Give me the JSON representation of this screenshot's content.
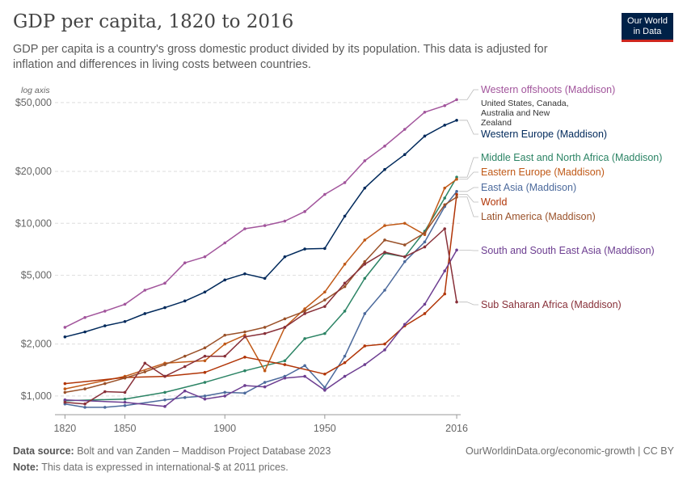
{
  "header": {
    "title": "GDP per capita, 1820 to 2016",
    "subtitle": "GDP per capita is a country's gross domestic product divided by its population. This data is adjusted for inflation and differences in living costs between countries."
  },
  "logo": {
    "line1": "Our World",
    "line2": "in Data",
    "bg": "#002147",
    "accent": "#ce261e"
  },
  "footer": {
    "source_label": "Data source:",
    "source_text": "Bolt and van Zanden – Maddison Project Database 2023",
    "note_label": "Note:",
    "note_text": "This data is expressed in international-$ at 2011 prices.",
    "link": "OurWorldinData.org/economic-growth | CC BY"
  },
  "chart_data": {
    "type": "line",
    "scale": "log",
    "axis_note": "log axis",
    "xlim": [
      1815,
      2018
    ],
    "ylim": [
      850,
      60000
    ],
    "x_ticks": [
      1820,
      1850,
      1900,
      1950,
      2016
    ],
    "y_ticks": [
      {
        "value": 1000,
        "label": "$1,000"
      },
      {
        "value": 2000,
        "label": "$2,000"
      },
      {
        "value": 5000,
        "label": "$5,000"
      },
      {
        "value": 10000,
        "label": "$10,000"
      },
      {
        "value": 20000,
        "label": "$20,000"
      },
      {
        "value": 50000,
        "label": "$50,000"
      }
    ],
    "grid": "horizontal dashed",
    "series": [
      {
        "name": "Western offshoots (Maddison)",
        "color": "#a2559c",
        "note": [
          "United States, Canada,",
          "Australia and New",
          "Zealand"
        ],
        "points": [
          [
            1820,
            2500
          ],
          [
            1830,
            2850
          ],
          [
            1840,
            3100
          ],
          [
            1850,
            3400
          ],
          [
            1860,
            4100
          ],
          [
            1870,
            4500
          ],
          [
            1880,
            5900
          ],
          [
            1890,
            6400
          ],
          [
            1900,
            7700
          ],
          [
            1910,
            9300
          ],
          [
            1920,
            9700
          ],
          [
            1930,
            10300
          ],
          [
            1940,
            11700
          ],
          [
            1950,
            14700
          ],
          [
            1960,
            17200
          ],
          [
            1970,
            23000
          ],
          [
            1980,
            28000
          ],
          [
            1990,
            35000
          ],
          [
            2000,
            44000
          ],
          [
            2010,
            48000
          ],
          [
            2016,
            52000
          ]
        ]
      },
      {
        "name": "Western Europe (Maddison)",
        "color": "#00295b",
        "points": [
          [
            1820,
            2200
          ],
          [
            1830,
            2350
          ],
          [
            1840,
            2550
          ],
          [
            1850,
            2700
          ],
          [
            1860,
            3000
          ],
          [
            1870,
            3250
          ],
          [
            1880,
            3550
          ],
          [
            1890,
            4000
          ],
          [
            1900,
            4700
          ],
          [
            1910,
            5100
          ],
          [
            1920,
            4800
          ],
          [
            1930,
            6400
          ],
          [
            1940,
            7100
          ],
          [
            1950,
            7150
          ],
          [
            1960,
            11000
          ],
          [
            1970,
            16000
          ],
          [
            1980,
            20500
          ],
          [
            1990,
            25000
          ],
          [
            2000,
            32000
          ],
          [
            2010,
            37000
          ],
          [
            2016,
            39500
          ]
        ]
      },
      {
        "name": "Middle East and North Africa (Maddison)",
        "color": "#2c8465",
        "points": [
          [
            1820,
            940
          ],
          [
            1850,
            960
          ],
          [
            1870,
            1050
          ],
          [
            1890,
            1200
          ],
          [
            1910,
            1400
          ],
          [
            1930,
            1600
          ],
          [
            1940,
            2150
          ],
          [
            1950,
            2300
          ],
          [
            1960,
            3100
          ],
          [
            1970,
            4800
          ],
          [
            1980,
            6700
          ],
          [
            1990,
            6400
          ],
          [
            2000,
            9000
          ],
          [
            2010,
            14000
          ],
          [
            2016,
            18500
          ]
        ]
      },
      {
        "name": "Eastern Europe (Maddison)",
        "color": "#c05917",
        "points": [
          [
            1820,
            1100
          ],
          [
            1850,
            1300
          ],
          [
            1870,
            1550
          ],
          [
            1890,
            1600
          ],
          [
            1900,
            2000
          ],
          [
            1910,
            2250
          ],
          [
            1920,
            1400
          ],
          [
            1930,
            2500
          ],
          [
            1940,
            3200
          ],
          [
            1950,
            4000
          ],
          [
            1960,
            5800
          ],
          [
            1970,
            8000
          ],
          [
            1980,
            9700
          ],
          [
            1990,
            10000
          ],
          [
            2000,
            8600
          ],
          [
            2010,
            16000
          ],
          [
            2016,
            18000
          ]
        ]
      },
      {
        "name": "East Asia (Maddison)",
        "color": "#4c6a9c",
        "points": [
          [
            1820,
            900
          ],
          [
            1830,
            860
          ],
          [
            1840,
            860
          ],
          [
            1850,
            880
          ],
          [
            1870,
            950
          ],
          [
            1880,
            980
          ],
          [
            1890,
            1000
          ],
          [
            1900,
            1050
          ],
          [
            1910,
            1040
          ],
          [
            1920,
            1200
          ],
          [
            1930,
            1300
          ],
          [
            1940,
            1500
          ],
          [
            1950,
            1120
          ],
          [
            1960,
            1700
          ],
          [
            1970,
            3000
          ],
          [
            1980,
            4100
          ],
          [
            1990,
            6000
          ],
          [
            2000,
            7800
          ],
          [
            2010,
            12500
          ],
          [
            2016,
            15300
          ]
        ]
      },
      {
        "name": "World",
        "color": "#b13507",
        "points": [
          [
            1820,
            1180
          ],
          [
            1850,
            1280
          ],
          [
            1870,
            1300
          ],
          [
            1890,
            1370
          ],
          [
            1910,
            1680
          ],
          [
            1930,
            1520
          ],
          [
            1950,
            1340
          ],
          [
            1960,
            1560
          ],
          [
            1970,
            1950
          ],
          [
            1980,
            2000
          ],
          [
            1990,
            2550
          ],
          [
            2000,
            3000
          ],
          [
            2010,
            3900
          ],
          [
            2016,
            14700
          ]
        ]
      },
      {
        "name": "Latin America (Maddison)",
        "color": "#9a5129",
        "points": [
          [
            1820,
            1050
          ],
          [
            1830,
            1100
          ],
          [
            1840,
            1180
          ],
          [
            1850,
            1270
          ],
          [
            1860,
            1380
          ],
          [
            1870,
            1520
          ],
          [
            1880,
            1700
          ],
          [
            1890,
            1900
          ],
          [
            1900,
            2250
          ],
          [
            1910,
            2350
          ],
          [
            1920,
            2500
          ],
          [
            1930,
            2800
          ],
          [
            1940,
            3100
          ],
          [
            1950,
            3600
          ],
          [
            1960,
            4300
          ],
          [
            1970,
            6000
          ],
          [
            1980,
            8000
          ],
          [
            1990,
            7500
          ],
          [
            2000,
            8800
          ],
          [
            2010,
            12800
          ],
          [
            2016,
            14200
          ]
        ]
      },
      {
        "name": "South and South East Asia (Maddison)",
        "color": "#6d3e91",
        "points": [
          [
            1820,
            950
          ],
          [
            1850,
            920
          ],
          [
            1870,
            870
          ],
          [
            1880,
            1070
          ],
          [
            1890,
            960
          ],
          [
            1900,
            1000
          ],
          [
            1910,
            1150
          ],
          [
            1920,
            1130
          ],
          [
            1930,
            1270
          ],
          [
            1940,
            1300
          ],
          [
            1950,
            1080
          ],
          [
            1960,
            1300
          ],
          [
            1970,
            1520
          ],
          [
            1980,
            1850
          ],
          [
            1990,
            2600
          ],
          [
            2000,
            3400
          ],
          [
            2010,
            5300
          ],
          [
            2016,
            7000
          ]
        ]
      },
      {
        "name": "Sub Saharan Africa (Maddison)",
        "color": "#883039",
        "points": [
          [
            1820,
            920
          ],
          [
            1830,
            900
          ],
          [
            1840,
            1060
          ],
          [
            1850,
            1050
          ],
          [
            1860,
            1550
          ],
          [
            1870,
            1300
          ],
          [
            1880,
            1480
          ],
          [
            1890,
            1700
          ],
          [
            1900,
            1700
          ],
          [
            1910,
            2200
          ],
          [
            1920,
            2300
          ],
          [
            1930,
            2500
          ],
          [
            1940,
            3000
          ],
          [
            1950,
            3300
          ],
          [
            1960,
            4500
          ],
          [
            1970,
            5800
          ],
          [
            1980,
            6800
          ],
          [
            1990,
            6400
          ],
          [
            2000,
            7300
          ],
          [
            2010,
            9300
          ],
          [
            2016,
            3500
          ]
        ]
      }
    ]
  }
}
